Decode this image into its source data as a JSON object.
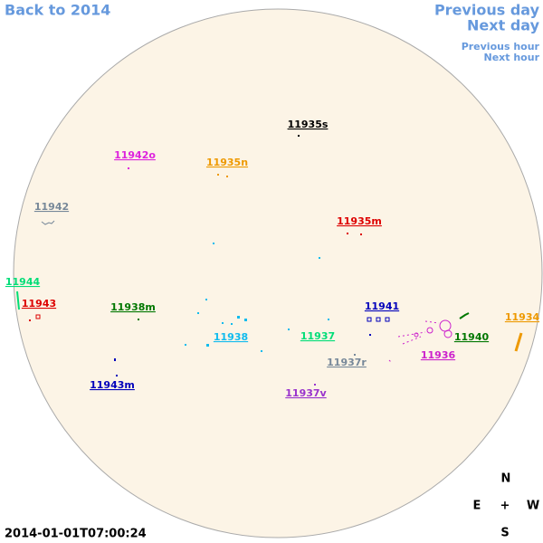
{
  "nav": {
    "back": "Back to 2014",
    "previous_day": "Previous day",
    "next_day": "Next day",
    "previous_hour": "Previous hour",
    "next_hour": "Next hour"
  },
  "timestamp": "2014-01-01T07:00:24",
  "compass": {
    "north": "N",
    "east": "E",
    "center": "+",
    "west": "W",
    "south": "S"
  },
  "regions": [
    {
      "label": "11935s",
      "color": "#000000"
    },
    {
      "label": "11942o",
      "color": "#dd22dd"
    },
    {
      "label": "11935n",
      "color": "#ee9900"
    },
    {
      "label": "11942",
      "color": "#778899"
    },
    {
      "label": "11935m",
      "color": "#dd0000"
    },
    {
      "label": "11944",
      "color": "#00dd77"
    },
    {
      "label": "11943",
      "color": "#dd0000"
    },
    {
      "label": "11938m",
      "color": "#007700"
    },
    {
      "label": "11941",
      "color": "#0000bb"
    },
    {
      "label": "11934",
      "color": "#ee9900"
    },
    {
      "label": "11938",
      "color": "#11bbee"
    },
    {
      "label": "11937",
      "color": "#00dd77"
    },
    {
      "label": "11940",
      "color": "#007700"
    },
    {
      "label": "11936",
      "color": "#cc22cc"
    },
    {
      "label": "11937r",
      "color": "#778899"
    },
    {
      "label": "11943m",
      "color": "#0000bb"
    },
    {
      "label": "11937v",
      "color": "#9933cc"
    }
  ]
}
